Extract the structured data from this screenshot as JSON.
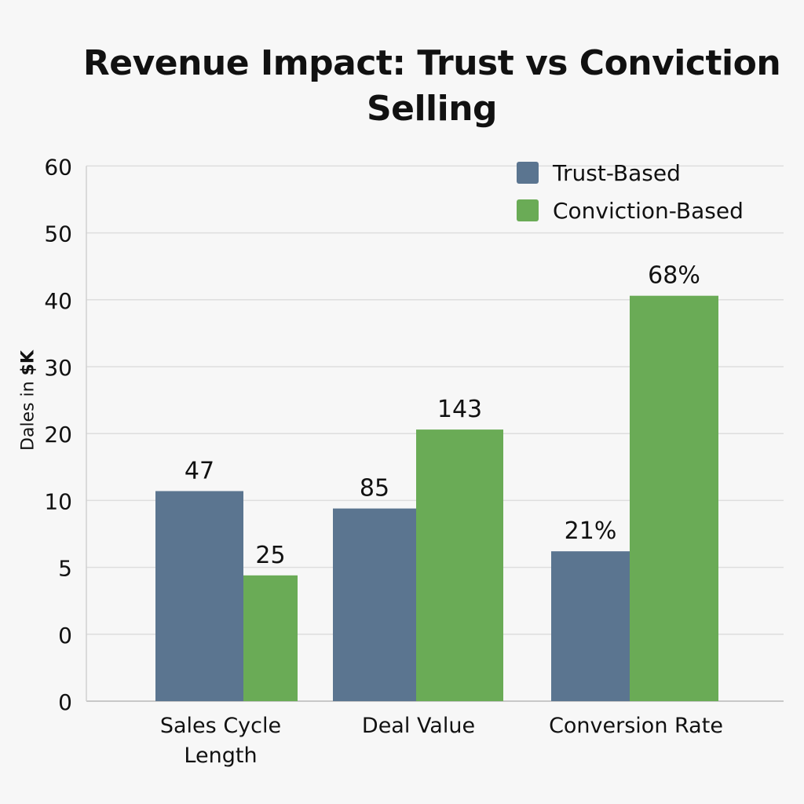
{
  "chart_data": {
    "type": "bar",
    "title": "Revenue Impact: Trust vs Conviction Selling",
    "ylabel": "Dales in",
    "ylabel_bold": "$K",
    "xlabel": "",
    "y_ticks": [
      "0",
      "0",
      "5",
      "10",
      "20",
      "30",
      "40",
      "50",
      "60"
    ],
    "categories": [
      "Sales Cycle Length",
      "Deal Value",
      "Conversion Rate"
    ],
    "series": [
      {
        "name": "Trust-Based",
        "color": "#5b7590",
        "data_labels": [
          "47",
          "85",
          "21%"
        ],
        "bar_levels": [
          11.4,
          9.4,
          6.2
        ]
      },
      {
        "name": "Conviction-Based",
        "color": "#6aab56",
        "data_labels": [
          "25",
          "143",
          "68%"
        ],
        "bar_levels": [
          4.4,
          20.6,
          40.6
        ]
      }
    ],
    "grid": true,
    "legend_position": "top-right"
  }
}
